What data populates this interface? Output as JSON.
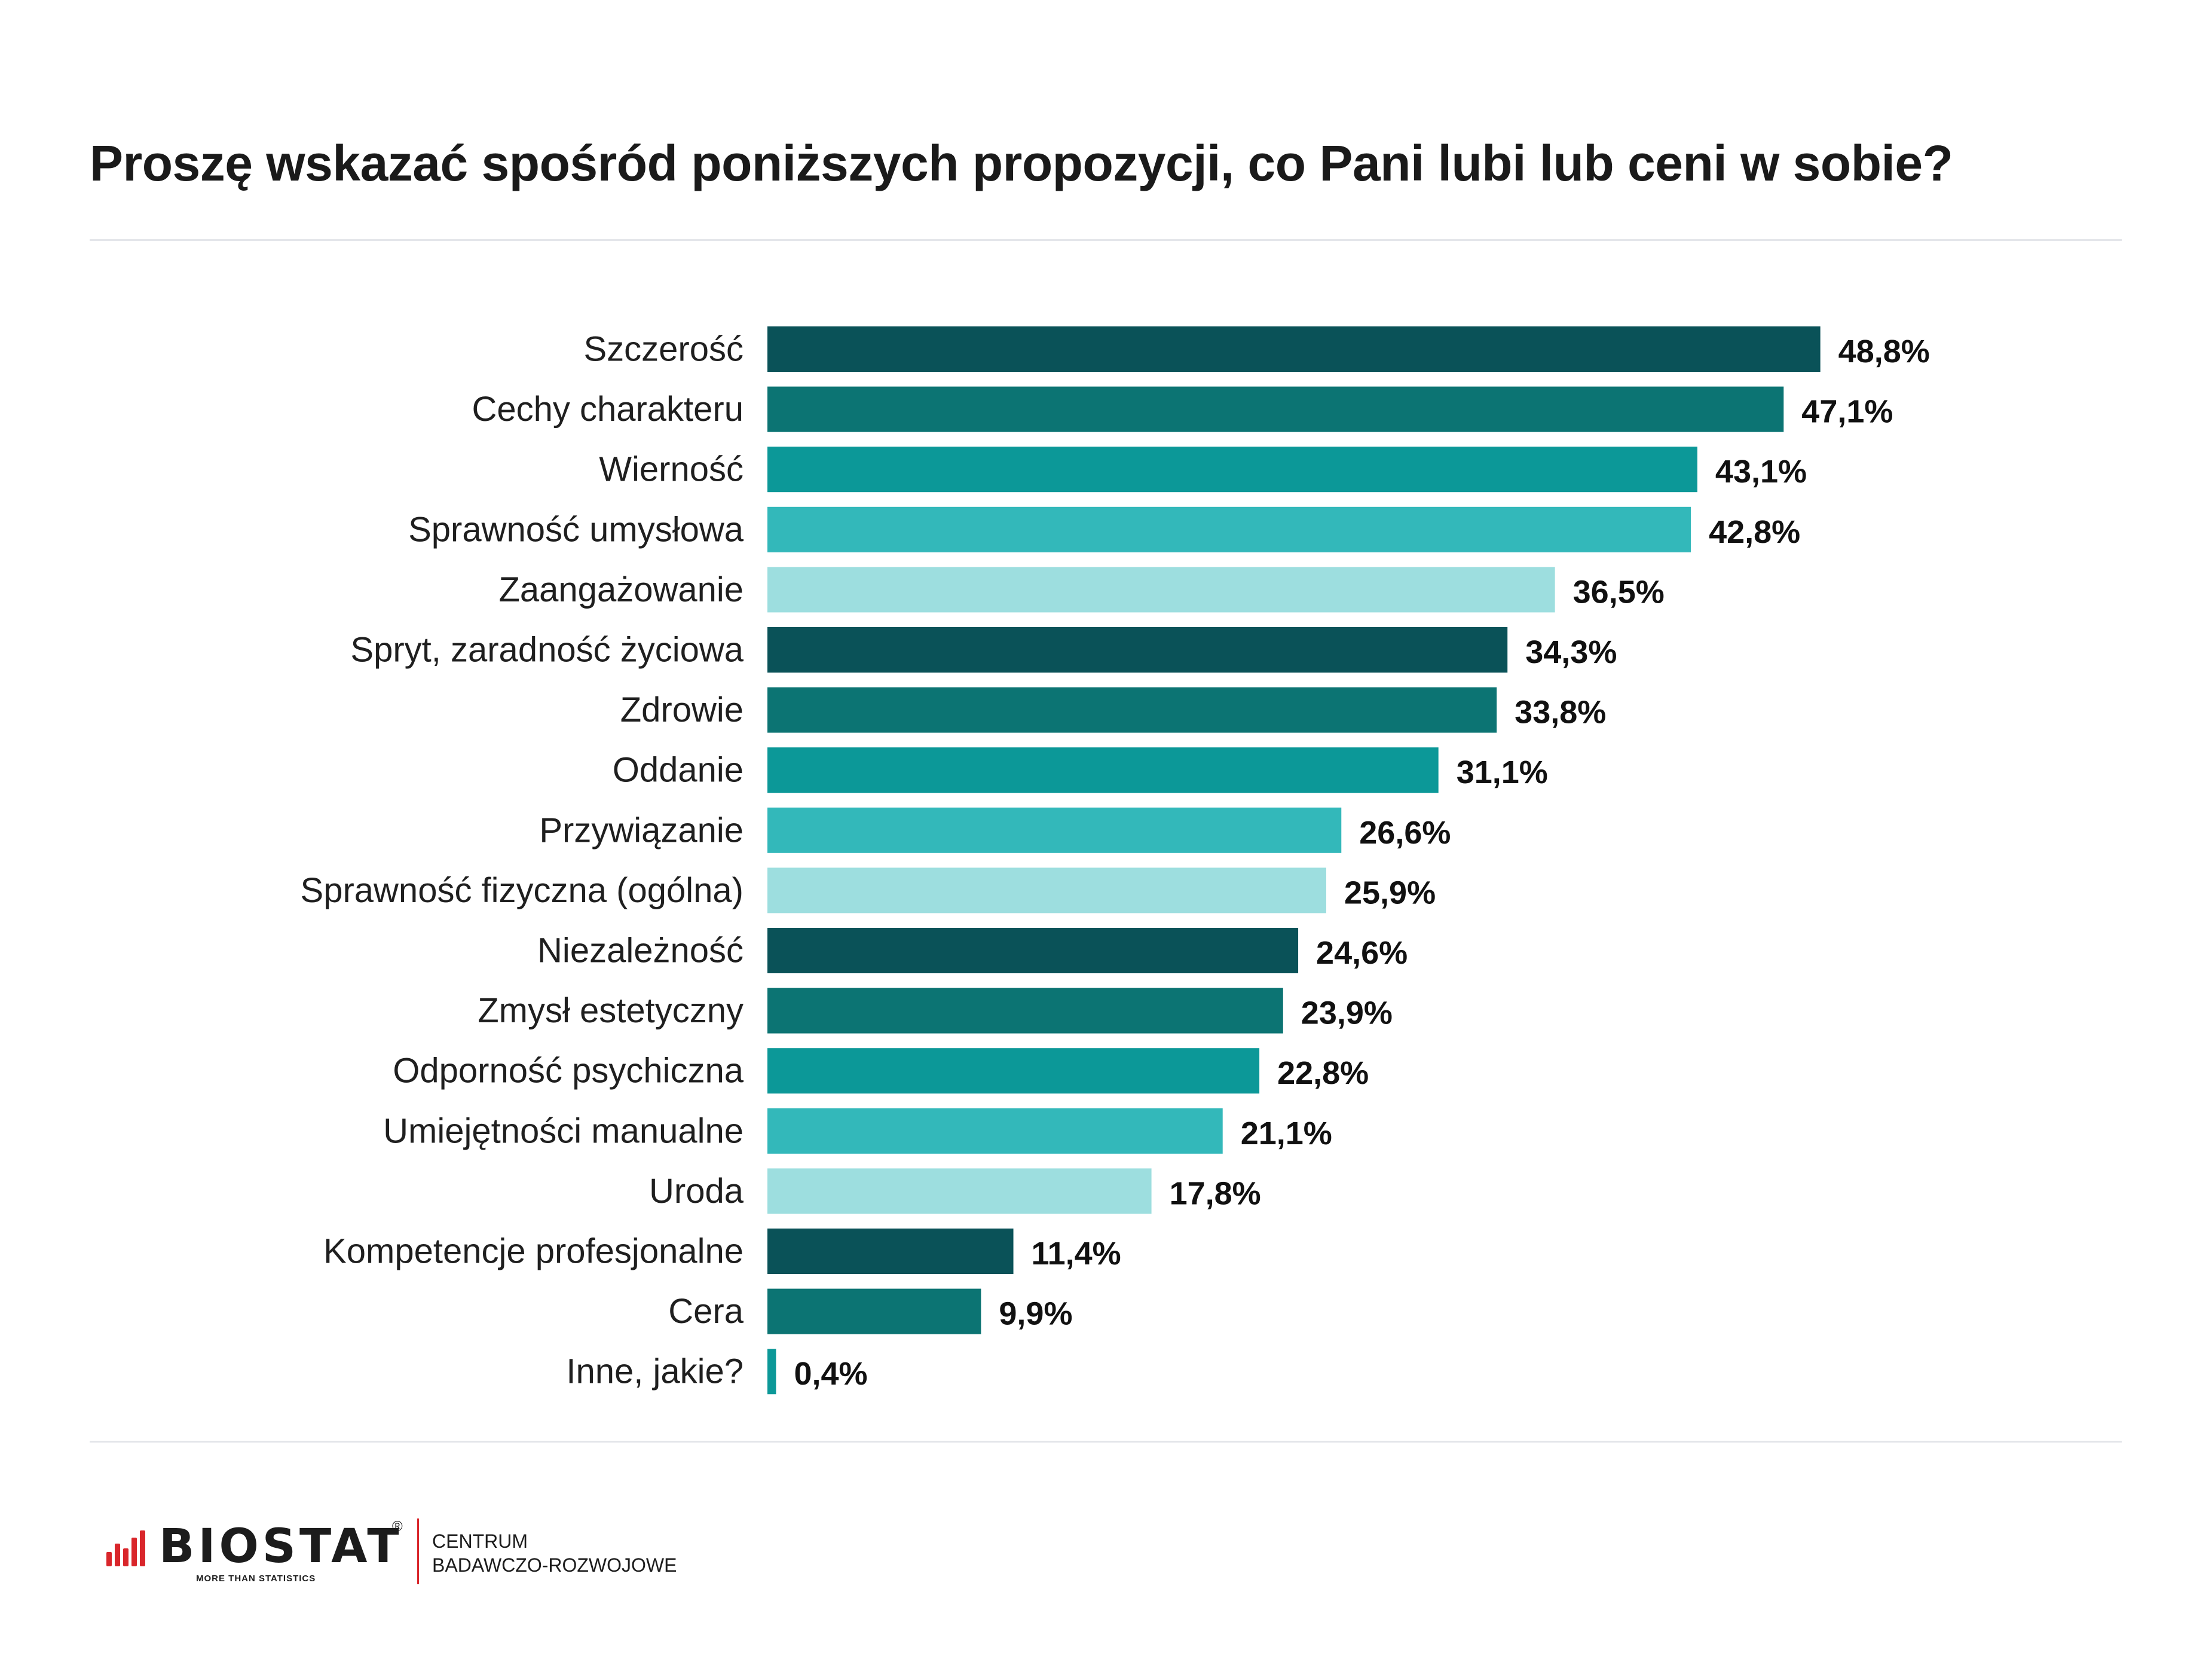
{
  "title": "Proszę wskazać spośród poniższych propozycji, co Pani lubi lub ceni w sobie?",
  "chart_data": {
    "type": "bar",
    "orientation": "horizontal",
    "title": "Proszę wskazać spośród poniższych propozycji, co Pani lubi lub ceni w sobie?",
    "unit": "%",
    "xlim": [
      0,
      50
    ],
    "grid": false,
    "legend": "none",
    "categories": [
      "Szczerość",
      "Cechy charakteru",
      "Wierność",
      "Sprawność umysłowa",
      "Zaangażowanie",
      "Spryt, zaradność życiowa",
      "Zdrowie",
      "Oddanie",
      "Przywiązanie",
      "Sprawność fizyczna (ogólna)",
      "Niezależność",
      "Zmysł estetyczny",
      "Odporność psychiczna",
      "Umiejętności manualne",
      "Uroda",
      "Kompetencje profesjonalne",
      "Cera",
      "Inne, jakie?"
    ],
    "values": [
      48.8,
      47.1,
      43.1,
      42.8,
      36.5,
      34.3,
      33.8,
      31.1,
      26.6,
      25.9,
      24.6,
      23.9,
      22.8,
      21.1,
      17.8,
      11.4,
      9.9,
      0.4
    ],
    "value_labels": [
      "48,8%",
      "47,1%",
      "43,1%",
      "42,8%",
      "36,5%",
      "34,3%",
      "33,8%",
      "31,1%",
      "26,6%",
      "25,9%",
      "24,6%",
      "23,9%",
      "22,8%",
      "21,1%",
      "17,8%",
      "11,4%",
      "9,9%",
      "0,4%"
    ],
    "colors": [
      "#0a5258",
      "#0c7473",
      "#0c9898",
      "#33b8ba",
      "#9ddedf"
    ]
  },
  "footer": {
    "logo_text": "BIOSTAT",
    "logo_registered": "®",
    "logo_tagline": "MORE THAN STATISTICS",
    "centre_line1": "CENTRUM",
    "centre_line2": "BADAWCZO-ROZWOJOWE"
  }
}
